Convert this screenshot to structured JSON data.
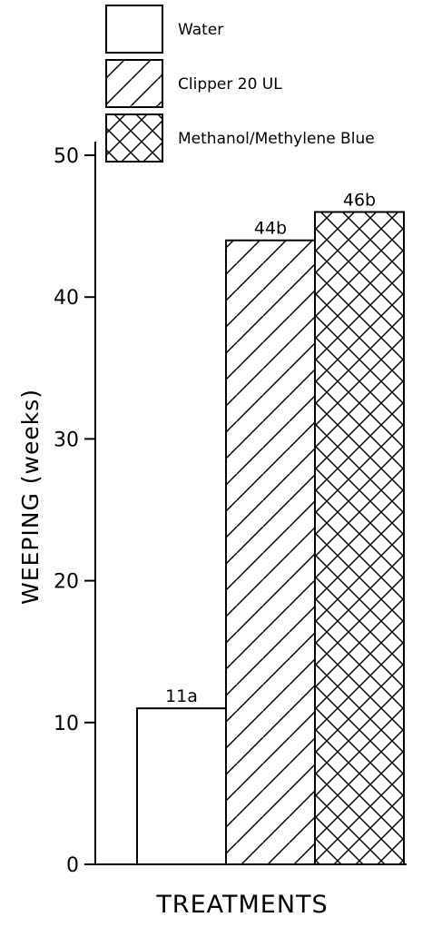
{
  "chart_data": {
    "type": "bar",
    "categories": [
      "Water",
      "Clipper 20 UL",
      "Methanol/Methylene Blue"
    ],
    "values": [
      11,
      44,
      46
    ],
    "data_labels": [
      "11a",
      "44b",
      "46b"
    ],
    "patterns": [
      "none",
      "diagonal",
      "crosshatch"
    ],
    "xlabel": "TREATMENTS",
    "ylabel": "WEEPING (weeks)",
    "ylim": [
      0,
      50
    ],
    "yticks": [
      0,
      10,
      20,
      30,
      40,
      50
    ],
    "legend": {
      "entries": [
        "Water",
        "Clipper 20 UL",
        "Methanol/Methylene Blue"
      ],
      "placement": "top"
    },
    "grid": false,
    "colors": {
      "ink": "#000000",
      "background": "#ffffff"
    }
  }
}
